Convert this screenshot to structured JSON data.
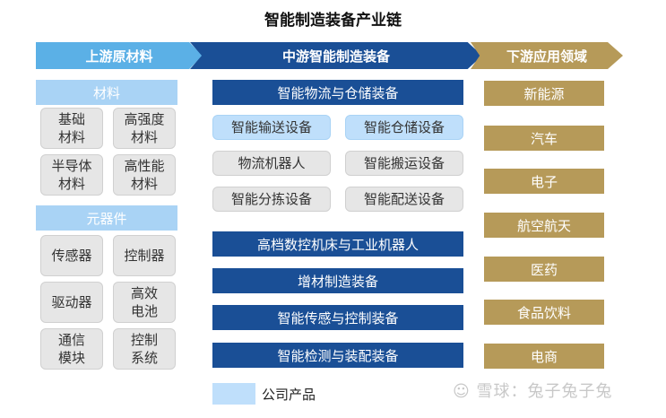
{
  "title": "智能制造装备产业链",
  "headers": {
    "upstream": "上游原材料",
    "midstream": "中游智能制造装备",
    "downstream": "下游应用领域"
  },
  "upstream": {
    "materials_label": "材料",
    "materials": [
      "基础\n材料",
      "高强度\n材料",
      "半导体\n材料",
      "高性能\n材料"
    ],
    "components_label": "元器件",
    "components": [
      "传感器",
      "控制器",
      "驱动器",
      "高效\n电池",
      "通信\n模块",
      "控制\n系统"
    ]
  },
  "midstream": {
    "logistics_title": "智能物流与仓储装备",
    "logistics_items": [
      "智能输送设备",
      "智能仓储设备",
      "物流机器人",
      "智能搬运设备",
      "智能分拣设备",
      "智能配送设备"
    ],
    "bars": [
      "高档数控机床与工业机器人",
      "增材制造装备",
      "智能传感与控制装备",
      "智能检测与装配装备"
    ]
  },
  "downstream": [
    "新能源",
    "汽车",
    "电子",
    "航空航天",
    "医药",
    "食品饮料",
    "电商"
  ],
  "legend": {
    "label": "公司产品",
    "swatch_color": "#bfdffb"
  },
  "watermark": "☺ 雪球：兔子兔子兔",
  "colors": {
    "upstream": "#5bb0e6",
    "midstream": "#1a4f96",
    "downstream": "#b69a59",
    "light_blue": "#a9d3f5",
    "grey": "#e6e6e6"
  }
}
